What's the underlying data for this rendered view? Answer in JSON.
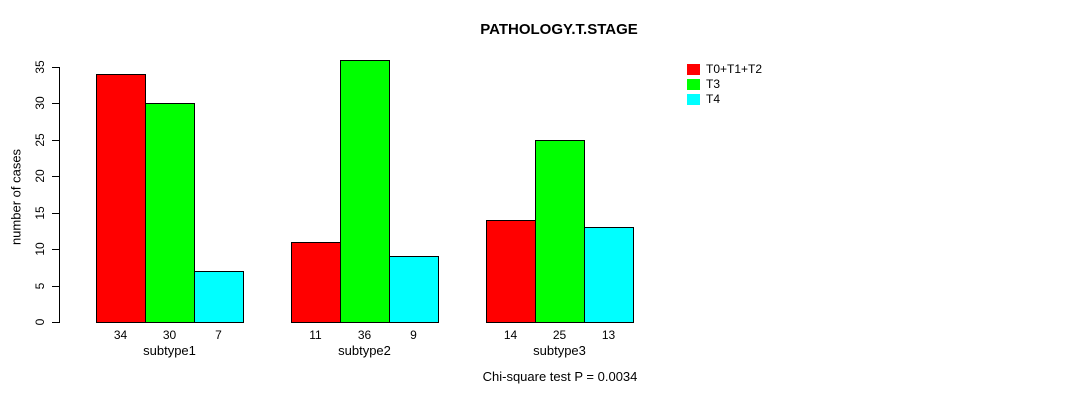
{
  "title": "PATHOLOGY.T.STAGE",
  "footer": "Chi-square test P = 0.0034",
  "legend": [
    {
      "label": "T0+T1+T2",
      "color": "#ff0000"
    },
    {
      "label": "T3",
      "color": "#00ff00"
    },
    {
      "label": "T4",
      "color": "#00ffff"
    }
  ],
  "chart_data": {
    "type": "bar",
    "title": "PATHOLOGY.T.STAGE",
    "xlabel": "",
    "ylabel": "number of cases",
    "categories": [
      "subtype1",
      "subtype2",
      "subtype3"
    ],
    "series": [
      {
        "name": "T0+T1+T2",
        "color": "#ff0000",
        "values": [
          34,
          11,
          14
        ]
      },
      {
        "name": "T3",
        "color": "#00ff00",
        "values": [
          30,
          36,
          25
        ]
      },
      {
        "name": "T4",
        "color": "#00ffff",
        "values": [
          7,
          9,
          13
        ]
      }
    ],
    "bar_value_labels": true,
    "yticks": [
      0,
      5,
      10,
      15,
      20,
      25,
      30,
      35
    ],
    "ylim": [
      0,
      35
    ],
    "grid": false,
    "legend_position": "top-right",
    "annotation": "Chi-square test P = 0.0034"
  }
}
